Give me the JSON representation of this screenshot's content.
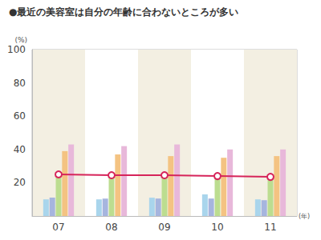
{
  "chart_data": {
    "type": "bar",
    "title": "●最近の美容室は自分の年齢に合わないところが多い",
    "y_label": "(%)",
    "x_label": "(年)",
    "categories": [
      "07",
      "08",
      "09",
      "10",
      "11"
    ],
    "series": [
      {
        "color": "#a9d5ec",
        "values": [
          10,
          10,
          11,
          13,
          10
        ]
      },
      {
        "color": "#a6b5de",
        "values": [
          11,
          10.5,
          10.5,
          10.5,
          9.5
        ]
      },
      {
        "color": "#bcdd90",
        "values": [
          24,
          24,
          23,
          23,
          23
        ]
      },
      {
        "color": "#f4c382",
        "values": [
          39,
          37,
          36,
          35,
          36
        ]
      },
      {
        "color": "#e8b8da",
        "values": [
          43,
          42,
          43,
          40,
          40
        ]
      },
      {
        "type": "line",
        "color": "#d6245a",
        "marker": "circle",
        "values": [
          25,
          24.5,
          24.5,
          24,
          23.5
        ]
      }
    ],
    "ylim": [
      0,
      100
    ],
    "yticks": [
      20,
      40,
      60,
      80,
      100
    ],
    "grid": true
  }
}
